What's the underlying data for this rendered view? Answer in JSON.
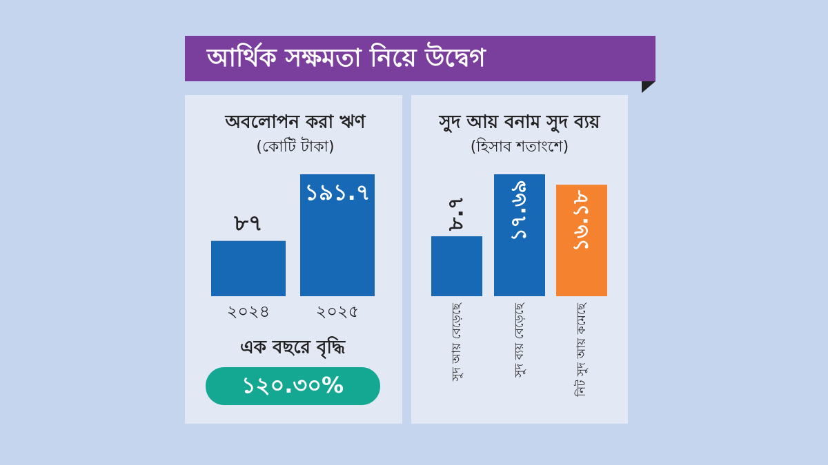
{
  "header": {
    "title": "আর্থিক সক্ষমতা নিয়ে উদ্বেগ"
  },
  "chart_data": [
    {
      "type": "bar",
      "title": "অবলোপন করা ঋণ",
      "subtitle": "(কোটি টাকা)",
      "categories": [
        "২০২৪",
        "২০২৫"
      ],
      "values": [
        87,
        191.7
      ],
      "value_labels": [
        "৮৭",
        "১৯১.৭"
      ],
      "color": "#1769b5"
    },
    {
      "type": "bar",
      "title": "সুদ আয় বনাম সুদ ব্যয়",
      "subtitle": "(হিসাব শতাংশে)",
      "categories": [
        "সুদ আয় বেড়েছে",
        "সুদ ব্যয় বেড়েছে",
        "নিট সুদ আয় কমেছে"
      ],
      "values": [
        8.7,
        17.69,
        16.18
      ],
      "value_labels": [
        "৮.৭",
        "১৭.৬৯",
        "১৬.১৮"
      ],
      "colors": [
        "#1769b5",
        "#1769b5",
        "#f4822f"
      ]
    }
  ],
  "highlight": {
    "label": "এক বছরে বৃদ্ধি",
    "value": "১২০.৩০%"
  }
}
